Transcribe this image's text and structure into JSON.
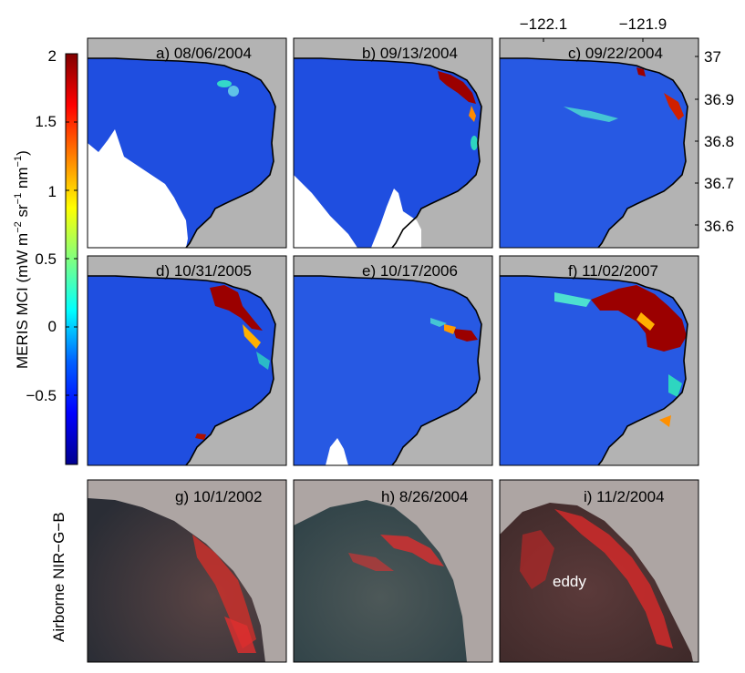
{
  "colorbar": {
    "label_main": "MERIS MCI (mW m",
    "label_sup1": "−2",
    "label_mid1": " sr",
    "label_sup2": "−1",
    "label_mid2": " nm",
    "label_sup3": "−1",
    "label_end": ")",
    "ticks": [
      "2",
      "1.5",
      "1",
      "0.5",
      "0",
      "−0.5"
    ],
    "range": [
      -1,
      2
    ],
    "colors": [
      "#00008f",
      "#0000ff",
      "#0080ff",
      "#00ffff",
      "#80ff80",
      "#ffff00",
      "#ff8000",
      "#ff0000",
      "#800000"
    ]
  },
  "axes": {
    "lon_ticks": [
      "−122.1",
      "−121.9"
    ],
    "lat_ticks": [
      "37",
      "36.9",
      "36.8",
      "36.7",
      "36.6"
    ]
  },
  "panels": [
    {
      "label": "a) 08/06/2004",
      "kind": "mci"
    },
    {
      "label": "b) 09/13/2004",
      "kind": "mci"
    },
    {
      "label": "c) 09/22/2004",
      "kind": "mci"
    },
    {
      "label": "d) 10/31/2005",
      "kind": "mci"
    },
    {
      "label": "e) 10/17/2006",
      "kind": "mci"
    },
    {
      "label": "f) 11/02/2007",
      "kind": "mci"
    },
    {
      "label": "g) 10/1/2002",
      "kind": "nir"
    },
    {
      "label": "h) 8/26/2004",
      "kind": "nir"
    },
    {
      "label": "i) 11/2/2004",
      "kind": "nir",
      "annotation": "eddy"
    }
  ],
  "row_label": "Airborne NIR−G−B",
  "colors": {
    "land": "#b3b3b3",
    "ocean": "#1f4ee0",
    "bloom": "#9b0000",
    "nir_bg": "#ada5a3"
  }
}
